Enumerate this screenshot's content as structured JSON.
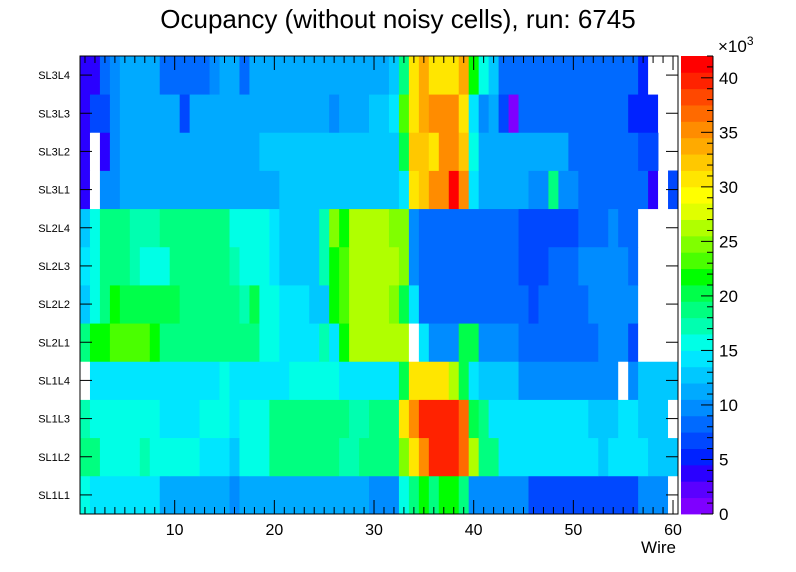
{
  "chart_data": {
    "type": "heatmap",
    "title": "Ocupancy (without noisy cells), run: 6745",
    "xlabel": "Wire",
    "ylabel": "",
    "xlim": [
      0.5,
      60.5
    ],
    "x_ticks": [
      10,
      20,
      30,
      40,
      50,
      60
    ],
    "x_tick_labels": [
      "10",
      "20",
      "30",
      "40",
      "50",
      "60"
    ],
    "y_labels": [
      "SL1L1",
      "SL1L2",
      "SL1L3",
      "SL1L4",
      "SL2L1",
      "SL2L2",
      "SL2L3",
      "SL2L4",
      "SL3L1",
      "SL3L2",
      "SL3L3",
      "SL3L4"
    ],
    "colorbar": {
      "min": 0,
      "max": 42,
      "exponent_label": "×10",
      "exponent_power": "3",
      "ticks": [
        0,
        5,
        10,
        15,
        20,
        25,
        30,
        35,
        40
      ],
      "tick_labels": [
        "0",
        "5",
        "10",
        "15",
        "20",
        "25",
        "30",
        "35",
        "40"
      ]
    },
    "color_scale": [
      "#7f00ff",
      "#5a00ff",
      "#2a00ff",
      "#0022ff",
      "#0048ff",
      "#006aff",
      "#008cff",
      "#00aaff",
      "#00c8ff",
      "#00e6ff",
      "#00ffe6",
      "#00ffb0",
      "#00ff80",
      "#00ff4a",
      "#00ff00",
      "#4aff00",
      "#80ff00",
      "#b0ff00",
      "#e0ff00",
      "#ffff00",
      "#ffe600",
      "#ffc800",
      "#ffaa00",
      "#ff8c00",
      "#ff6a00",
      "#ff4800",
      "#ff2200",
      "#ff0000"
    ],
    "rows": [
      {
        "label": "SL1L1",
        "segments": [
          [
            1,
            1,
            16
          ],
          [
            2,
            8,
            14
          ],
          [
            9,
            15,
            11
          ],
          [
            16,
            16,
            10
          ],
          [
            17,
            29,
            11
          ],
          [
            30,
            32,
            10
          ],
          [
            33,
            33,
            16
          ],
          [
            34,
            34,
            19
          ],
          [
            35,
            35,
            22
          ],
          [
            36,
            36,
            19
          ],
          [
            37,
            38,
            22
          ],
          [
            39,
            39,
            19
          ],
          [
            40,
            45,
            10
          ],
          [
            46,
            56,
            6
          ],
          [
            57,
            59,
            10
          ],
          [
            60,
            60,
            0
          ]
        ]
      },
      {
        "label": "SL1L2",
        "segments": [
          [
            1,
            1,
            19
          ],
          [
            2,
            2,
            18
          ],
          [
            3,
            5,
            16
          ],
          [
            6,
            6,
            15
          ],
          [
            7,
            7,
            17
          ],
          [
            8,
            8,
            16
          ],
          [
            9,
            9,
            15
          ],
          [
            10,
            12,
            16
          ],
          [
            13,
            15,
            14
          ],
          [
            16,
            16,
            13
          ],
          [
            17,
            17,
            15
          ],
          [
            18,
            19,
            16
          ],
          [
            20,
            26,
            19
          ],
          [
            27,
            28,
            17
          ],
          [
            29,
            32,
            19
          ],
          [
            33,
            33,
            24
          ],
          [
            34,
            34,
            30
          ],
          [
            35,
            35,
            35
          ],
          [
            36,
            36,
            39
          ],
          [
            37,
            38,
            40
          ],
          [
            39,
            39,
            36
          ],
          [
            40,
            40,
            26
          ],
          [
            41,
            42,
            18
          ],
          [
            43,
            52,
            14
          ],
          [
            53,
            53,
            12
          ],
          [
            54,
            57,
            14
          ],
          [
            58,
            60,
            12
          ]
        ]
      },
      {
        "label": "SL1L3",
        "segments": [
          [
            1,
            1,
            17
          ],
          [
            2,
            8,
            16
          ],
          [
            9,
            12,
            14
          ],
          [
            13,
            15,
            16
          ],
          [
            16,
            16,
            14
          ],
          [
            17,
            19,
            16
          ],
          [
            20,
            27,
            19
          ],
          [
            28,
            29,
            17
          ],
          [
            30,
            32,
            19
          ],
          [
            33,
            33,
            30
          ],
          [
            34,
            34,
            35
          ],
          [
            35,
            35,
            39
          ],
          [
            36,
            38,
            40
          ],
          [
            39,
            39,
            36
          ],
          [
            40,
            40,
            20
          ],
          [
            41,
            41,
            18
          ],
          [
            42,
            51,
            14
          ],
          [
            52,
            54,
            12
          ],
          [
            55,
            56,
            14
          ],
          [
            57,
            59,
            12
          ],
          [
            60,
            60,
            0
          ]
        ]
      },
      {
        "label": "SL1L4",
        "segments": [
          [
            1,
            1,
            0
          ],
          [
            2,
            14,
            14
          ],
          [
            15,
            15,
            16
          ],
          [
            16,
            21,
            14
          ],
          [
            22,
            26,
            16
          ],
          [
            27,
            32,
            14
          ],
          [
            33,
            33,
            20
          ],
          [
            34,
            37,
            30
          ],
          [
            38,
            38,
            26
          ],
          [
            39,
            39,
            20
          ],
          [
            40,
            40,
            14
          ],
          [
            41,
            44,
            12
          ],
          [
            45,
            54,
            10
          ],
          [
            55,
            55,
            0
          ],
          [
            56,
            56,
            10
          ],
          [
            57,
            60,
            12
          ]
        ]
      },
      {
        "label": "SL2L1",
        "segments": [
          [
            1,
            1,
            19
          ],
          [
            2,
            3,
            21
          ],
          [
            4,
            7,
            23
          ],
          [
            8,
            8,
            21
          ],
          [
            9,
            12,
            19
          ],
          [
            13,
            18,
            18
          ],
          [
            19,
            20,
            16
          ],
          [
            21,
            24,
            14
          ],
          [
            25,
            25,
            17
          ],
          [
            26,
            26,
            14
          ],
          [
            27,
            27,
            21
          ],
          [
            28,
            33,
            26
          ],
          [
            34,
            34,
            0
          ],
          [
            35,
            35,
            14
          ],
          [
            36,
            38,
            10
          ],
          [
            39,
            40,
            20
          ],
          [
            41,
            44,
            10
          ],
          [
            45,
            52,
            8
          ],
          [
            53,
            55,
            10
          ],
          [
            56,
            56,
            6
          ],
          [
            57,
            60,
            0
          ]
        ]
      },
      {
        "label": "SL2L2",
        "segments": [
          [
            1,
            1,
            13
          ],
          [
            2,
            2,
            16
          ],
          [
            3,
            3,
            19
          ],
          [
            4,
            4,
            21
          ],
          [
            5,
            10,
            20
          ],
          [
            11,
            16,
            19
          ],
          [
            17,
            17,
            17
          ],
          [
            18,
            18,
            20
          ],
          [
            19,
            20,
            16
          ],
          [
            21,
            23,
            14
          ],
          [
            24,
            25,
            12
          ],
          [
            26,
            26,
            21
          ],
          [
            27,
            27,
            23
          ],
          [
            28,
            31,
            26
          ],
          [
            32,
            32,
            24
          ],
          [
            33,
            33,
            20
          ],
          [
            34,
            34,
            14
          ],
          [
            35,
            45,
            8
          ],
          [
            46,
            46,
            6
          ],
          [
            47,
            51,
            8
          ],
          [
            52,
            56,
            10
          ],
          [
            57,
            60,
            0
          ]
        ]
      },
      {
        "label": "SL2L3",
        "segments": [
          [
            1,
            1,
            14
          ],
          [
            2,
            2,
            16
          ],
          [
            3,
            5,
            19
          ],
          [
            6,
            6,
            17
          ],
          [
            7,
            9,
            16
          ],
          [
            10,
            15,
            18
          ],
          [
            16,
            16,
            17
          ],
          [
            17,
            19,
            16
          ],
          [
            20,
            20,
            14
          ],
          [
            21,
            24,
            12
          ],
          [
            25,
            25,
            17
          ],
          [
            26,
            26,
            21
          ],
          [
            27,
            27,
            23
          ],
          [
            28,
            32,
            26
          ],
          [
            33,
            33,
            24
          ],
          [
            34,
            34,
            10
          ],
          [
            35,
            44,
            8
          ],
          [
            45,
            47,
            6
          ],
          [
            48,
            50,
            8
          ],
          [
            51,
            55,
            10
          ],
          [
            56,
            56,
            8
          ],
          [
            57,
            60,
            0
          ]
        ]
      },
      {
        "label": "SL2L4",
        "segments": [
          [
            1,
            1,
            13
          ],
          [
            2,
            2,
            16
          ],
          [
            3,
            5,
            19
          ],
          [
            6,
            8,
            17
          ],
          [
            9,
            15,
            18
          ],
          [
            16,
            19,
            16
          ],
          [
            20,
            20,
            14
          ],
          [
            21,
            24,
            12
          ],
          [
            25,
            25,
            17
          ],
          [
            26,
            26,
            24
          ],
          [
            27,
            27,
            22
          ],
          [
            28,
            31,
            26
          ],
          [
            32,
            33,
            24
          ],
          [
            34,
            34,
            10
          ],
          [
            35,
            44,
            8
          ],
          [
            45,
            50,
            6
          ],
          [
            51,
            53,
            8
          ],
          [
            54,
            54,
            10
          ],
          [
            55,
            56,
            8
          ],
          [
            57,
            60,
            0
          ]
        ]
      },
      {
        "label": "SL3L1",
        "segments": [
          [
            1,
            1,
            3
          ],
          [
            2,
            2,
            0
          ],
          [
            3,
            4,
            10
          ],
          [
            5,
            20,
            11
          ],
          [
            21,
            32,
            12
          ],
          [
            33,
            33,
            14
          ],
          [
            34,
            34,
            30
          ],
          [
            35,
            35,
            32
          ],
          [
            36,
            37,
            35
          ],
          [
            38,
            38,
            41
          ],
          [
            39,
            39,
            35
          ],
          [
            40,
            40,
            14
          ],
          [
            41,
            45,
            11
          ],
          [
            46,
            47,
            10
          ],
          [
            48,
            48,
            18
          ],
          [
            49,
            50,
            10
          ],
          [
            51,
            57,
            8
          ],
          [
            58,
            58,
            4
          ],
          [
            59,
            59,
            0
          ],
          [
            60,
            60,
            6
          ]
        ]
      },
      {
        "label": "SL3L2",
        "segments": [
          [
            1,
            1,
            3
          ],
          [
            2,
            2,
            0
          ],
          [
            3,
            3,
            3
          ],
          [
            4,
            4,
            9
          ],
          [
            5,
            18,
            11
          ],
          [
            19,
            32,
            12
          ],
          [
            33,
            33,
            20
          ],
          [
            34,
            35,
            32
          ],
          [
            36,
            36,
            30
          ],
          [
            37,
            38,
            35
          ],
          [
            39,
            39,
            32
          ],
          [
            40,
            40,
            16
          ],
          [
            41,
            49,
            11
          ],
          [
            50,
            56,
            8
          ],
          [
            57,
            58,
            6
          ]
        ]
      },
      {
        "label": "SL3L3",
        "segments": [
          [
            1,
            1,
            3
          ],
          [
            2,
            2,
            6
          ],
          [
            3,
            3,
            7
          ],
          [
            4,
            4,
            9
          ],
          [
            5,
            10,
            11
          ],
          [
            11,
            11,
            7
          ],
          [
            12,
            25,
            11
          ],
          [
            26,
            26,
            9
          ],
          [
            27,
            29,
            11
          ],
          [
            30,
            31,
            12
          ],
          [
            32,
            32,
            14
          ],
          [
            33,
            33,
            23
          ],
          [
            34,
            34,
            30
          ],
          [
            35,
            35,
            34
          ],
          [
            36,
            38,
            35
          ],
          [
            39,
            39,
            31
          ],
          [
            40,
            40,
            14
          ],
          [
            41,
            41,
            10
          ],
          [
            42,
            42,
            11
          ],
          [
            43,
            43,
            7
          ],
          [
            44,
            44,
            1
          ],
          [
            45,
            55,
            8
          ],
          [
            56,
            58,
            5
          ],
          [
            59,
            60,
            0
          ]
        ]
      },
      {
        "label": "SL3L4",
        "segments": [
          [
            1,
            1,
            3
          ],
          [
            2,
            2,
            4
          ],
          [
            3,
            3,
            8
          ],
          [
            4,
            4,
            10
          ],
          [
            5,
            8,
            11
          ],
          [
            9,
            13,
            8
          ],
          [
            14,
            14,
            10
          ],
          [
            15,
            16,
            11
          ],
          [
            17,
            17,
            8
          ],
          [
            18,
            31,
            11
          ],
          [
            32,
            32,
            12
          ],
          [
            33,
            33,
            18
          ],
          [
            34,
            34,
            30
          ],
          [
            35,
            35,
            33
          ],
          [
            36,
            38,
            31
          ],
          [
            39,
            39,
            34
          ],
          [
            40,
            40,
            21
          ],
          [
            41,
            41,
            15
          ],
          [
            42,
            42,
            12
          ],
          [
            43,
            56,
            8
          ],
          [
            57,
            57,
            5
          ],
          [
            58,
            60,
            0
          ]
        ]
      }
    ]
  }
}
